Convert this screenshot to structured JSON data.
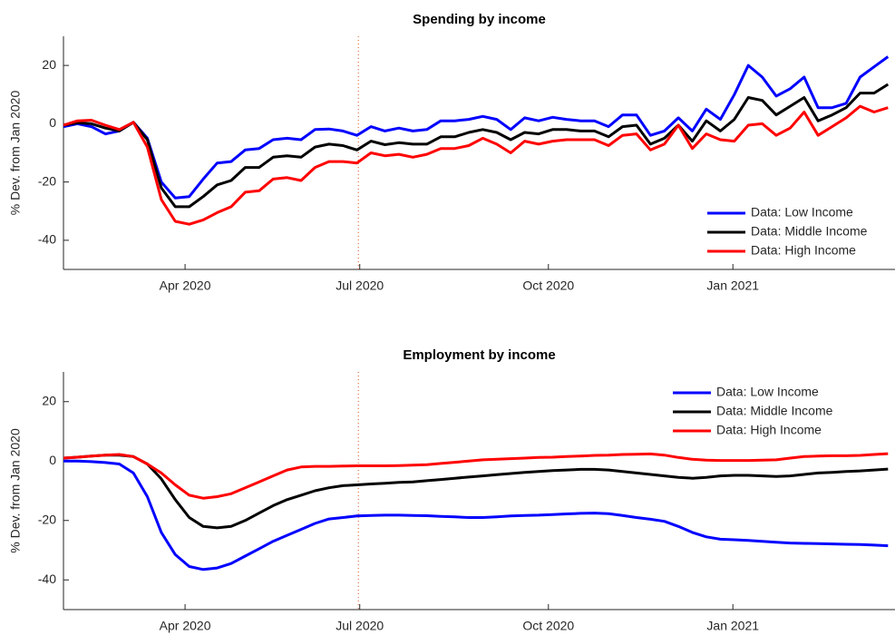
{
  "chart_data": [
    {
      "type": "line",
      "title": "Spending by income",
      "ylabel": "% Dev. from Jan 2020",
      "x": [
        0,
        1,
        2,
        3,
        4,
        5,
        6,
        7,
        8,
        9,
        10,
        11,
        12,
        13,
        14,
        15,
        16,
        17,
        18,
        19,
        20,
        21,
        22,
        23,
        24,
        25,
        26,
        27,
        28,
        29,
        30,
        31,
        32,
        33,
        34,
        35,
        36,
        37,
        38,
        39,
        40,
        41,
        42,
        43,
        44,
        45,
        46,
        47,
        48,
        49,
        50,
        51,
        52,
        53,
        54,
        55,
        56,
        57,
        58,
        59
      ],
      "xlim": [
        0,
        59.5
      ],
      "xticks": [
        {
          "value": 8.7,
          "label": "Apr 2020"
        },
        {
          "value": 21.2,
          "label": "Jul 2020"
        },
        {
          "value": 34.7,
          "label": "Oct 2020"
        },
        {
          "value": 47.9,
          "label": "Jan 2021"
        }
      ],
      "ylim": [
        -50,
        30
      ],
      "yticks": [
        -40,
        -20,
        0,
        20
      ],
      "vline": 21.1,
      "vline_color": "#d95319",
      "legend": "lower right",
      "series": [
        {
          "name": "Data: Low Income",
          "color": "#0000ff",
          "values": [
            -1,
            0,
            -1,
            -3.5,
            -2.5,
            0.5,
            -5,
            -20,
            -25.5,
            -25,
            -19,
            -13.5,
            -13,
            -9,
            -8.5,
            -5.5,
            -5,
            -5.5,
            -2,
            -1.8,
            -2.5,
            -4,
            -1,
            -2.5,
            -1.5,
            -2.5,
            -2,
            1,
            1,
            1.5,
            2.5,
            1.5,
            -2,
            2,
            1,
            2.2,
            1.5,
            1,
            1,
            -1,
            3,
            3,
            -4,
            -2.5,
            2,
            -2.5,
            5,
            1.5,
            10,
            20,
            16,
            9.5,
            12,
            16,
            5.5,
            5.5,
            7,
            16,
            19.5,
            23
          ]
        },
        {
          "name": "Data: Middle Income",
          "color": "#000000",
          "values": [
            -0.5,
            0.3,
            0,
            -1.5,
            -2.5,
            0.5,
            -5.5,
            -22,
            -28.5,
            -28.5,
            -25,
            -21,
            -19.5,
            -15,
            -15,
            -11.5,
            -11,
            -11.5,
            -8,
            -7,
            -7.5,
            -9,
            -6,
            -7.2,
            -6.5,
            -7,
            -7,
            -4.5,
            -4.5,
            -3,
            -2,
            -3,
            -5.5,
            -3,
            -3.5,
            -2,
            -2,
            -2.5,
            -2.5,
            -4.5,
            -1,
            -0.5,
            -7,
            -5,
            -0.5,
            -6,
            1,
            -2.5,
            1.5,
            9,
            8,
            3,
            6,
            9,
            1,
            3,
            5.5,
            10.5,
            10.5,
            13.5
          ]
        },
        {
          "name": "Data: High Income",
          "color": "#ff0000",
          "values": [
            -0.5,
            1,
            1.2,
            -0.5,
            -2,
            0.5,
            -8,
            -26,
            -33.5,
            -34.5,
            -33,
            -30.5,
            -28.5,
            -23.5,
            -23,
            -19,
            -18.5,
            -19.5,
            -15,
            -13,
            -13,
            -13.5,
            -10,
            -11,
            -10.5,
            -11.5,
            -10.5,
            -8.5,
            -8.5,
            -7.5,
            -5,
            -7,
            -10,
            -6,
            -7,
            -6,
            -5.5,
            -5.5,
            -5.5,
            -7.5,
            -4,
            -3.5,
            -9,
            -7,
            -0.5,
            -8.5,
            -3.5,
            -5.5,
            -6,
            -0.5,
            0,
            -4,
            -1.5,
            4,
            -4,
            -1,
            2,
            6,
            4,
            5.5
          ]
        }
      ]
    },
    {
      "type": "line",
      "title": "Employment by income",
      "ylabel": "% Dev. from Jan 2020",
      "x": [
        0,
        1,
        2,
        3,
        4,
        5,
        6,
        7,
        8,
        9,
        10,
        11,
        12,
        13,
        14,
        15,
        16,
        17,
        18,
        19,
        20,
        21,
        22,
        23,
        24,
        25,
        26,
        27,
        28,
        29,
        30,
        31,
        32,
        33,
        34,
        35,
        36,
        37,
        38,
        39,
        40,
        41,
        42,
        43,
        44,
        45,
        46,
        47,
        48,
        49,
        50,
        51,
        52,
        53,
        54,
        55,
        56,
        57,
        58,
        59
      ],
      "xlim": [
        0,
        59.5
      ],
      "xticks": [
        {
          "value": 8.7,
          "label": "Apr 2020"
        },
        {
          "value": 21.2,
          "label": "Jul 2020"
        },
        {
          "value": 34.7,
          "label": "Oct 2020"
        },
        {
          "value": 47.9,
          "label": "Jan 2021"
        }
      ],
      "ylim": [
        -50,
        30
      ],
      "yticks": [
        -40,
        -20,
        0,
        20
      ],
      "vline": 21.1,
      "vline_color": "#d95319",
      "legend": "upper right",
      "series": [
        {
          "name": "Data: Low Income",
          "color": "#0000ff",
          "values": [
            0,
            0,
            -0.2,
            -0.5,
            -1,
            -4,
            -12,
            -24,
            -31.5,
            -35.5,
            -36.5,
            -36,
            -34.5,
            -32,
            -29.5,
            -27,
            -25,
            -23,
            -21,
            -19.5,
            -19,
            -18.5,
            -18.3,
            -18.2,
            -18.2,
            -18.3,
            -18.4,
            -18.6,
            -18.8,
            -19,
            -19,
            -18.8,
            -18.5,
            -18.3,
            -18.2,
            -18,
            -17.8,
            -17.6,
            -17.5,
            -17.7,
            -18.3,
            -19,
            -19.6,
            -20.3,
            -22,
            -24,
            -25.5,
            -26.3,
            -26.5,
            -26.7,
            -27,
            -27.3,
            -27.6,
            -27.7,
            -27.8,
            -27.9,
            -28,
            -28.1,
            -28.3,
            -28.5
          ]
        },
        {
          "name": "Data: Middle Income",
          "color": "#000000",
          "values": [
            1,
            1.3,
            1.7,
            2,
            2,
            1.5,
            -1,
            -6,
            -13,
            -19,
            -22,
            -22.5,
            -22,
            -20,
            -17.5,
            -15,
            -13,
            -11.5,
            -10,
            -9,
            -8.3,
            -8,
            -7.7,
            -7.5,
            -7.2,
            -7,
            -6.6,
            -6.2,
            -5.8,
            -5.4,
            -5,
            -4.6,
            -4.2,
            -3.8,
            -3.5,
            -3.2,
            -3,
            -2.8,
            -2.8,
            -3,
            -3.5,
            -4,
            -4.5,
            -5,
            -5.5,
            -5.8,
            -5.5,
            -5,
            -4.8,
            -4.8,
            -5,
            -5.2,
            -5,
            -4.5,
            -4,
            -3.8,
            -3.5,
            -3.3,
            -3,
            -2.7
          ]
        },
        {
          "name": "Data: High Income",
          "color": "#ff0000",
          "values": [
            1,
            1.3,
            1.7,
            2,
            2.2,
            1.5,
            -1,
            -4,
            -8,
            -11.5,
            -12.5,
            -12,
            -11,
            -9,
            -7,
            -5,
            -3,
            -2,
            -1.8,
            -1.8,
            -1.7,
            -1.6,
            -1.6,
            -1.6,
            -1.5,
            -1.4,
            -1.2,
            -0.8,
            -0.4,
            0,
            0.4,
            0.6,
            0.8,
            1,
            1.2,
            1.3,
            1.5,
            1.7,
            1.9,
            2,
            2.2,
            2.3,
            2.4,
            2,
            1.2,
            0.6,
            0.3,
            0.2,
            0.2,
            0.2,
            0.3,
            0.4,
            1,
            1.5,
            1.7,
            1.8,
            1.8,
            1.9,
            2.2,
            2.5
          ]
        }
      ]
    }
  ]
}
